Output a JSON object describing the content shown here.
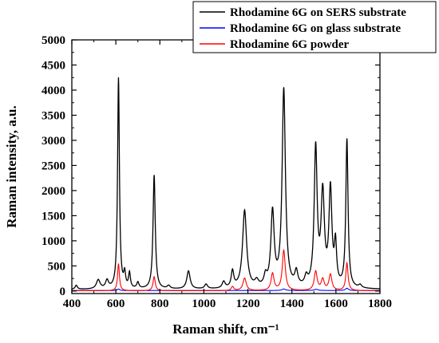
{
  "chart_data": {
    "type": "line",
    "xlabel": "Raman shift, cm⁻¹",
    "ylabel": "Raman intensity, a.u.",
    "xlim": [
      400,
      1800
    ],
    "ylim": [
      -50,
      5000
    ],
    "xticks": [
      400,
      600,
      800,
      1000,
      1200,
      1400,
      1600,
      1800
    ],
    "yticks": [
      0,
      500,
      1000,
      1500,
      2000,
      2500,
      3000,
      3500,
      4000,
      4500,
      5000
    ],
    "legend_position": "top-right",
    "grid": false,
    "series": [
      {
        "name": "Rhodamine 6G on SERS substrate",
        "color": "#000000",
        "baseline": 30,
        "peaks": [
          {
            "x": 420,
            "y": 80,
            "w": 6
          },
          {
            "x": 520,
            "y": 180,
            "w": 10
          },
          {
            "x": 560,
            "y": 160,
            "w": 8
          },
          {
            "x": 612,
            "y": 4200,
            "w": 5
          },
          {
            "x": 640,
            "y": 280,
            "w": 5
          },
          {
            "x": 662,
            "y": 300,
            "w": 5
          },
          {
            "x": 700,
            "y": 120,
            "w": 6
          },
          {
            "x": 774,
            "y": 2270,
            "w": 6
          },
          {
            "x": 840,
            "y": 60,
            "w": 8
          },
          {
            "x": 930,
            "y": 360,
            "w": 9
          },
          {
            "x": 1010,
            "y": 90,
            "w": 8
          },
          {
            "x": 1090,
            "y": 130,
            "w": 8
          },
          {
            "x": 1130,
            "y": 330,
            "w": 7
          },
          {
            "x": 1185,
            "y": 1550,
            "w": 11
          },
          {
            "x": 1240,
            "y": 120,
            "w": 10
          },
          {
            "x": 1280,
            "y": 200,
            "w": 8
          },
          {
            "x": 1312,
            "y": 1490,
            "w": 9
          },
          {
            "x": 1363,
            "y": 3950,
            "w": 9
          },
          {
            "x": 1420,
            "y": 280,
            "w": 8
          },
          {
            "x": 1465,
            "y": 170,
            "w": 8
          },
          {
            "x": 1508,
            "y": 2750,
            "w": 8
          },
          {
            "x": 1540,
            "y": 1830,
            "w": 9
          },
          {
            "x": 1575,
            "y": 1920,
            "w": 8
          },
          {
            "x": 1598,
            "y": 800,
            "w": 6
          },
          {
            "x": 1650,
            "y": 2950,
            "w": 6
          },
          {
            "x": 1710,
            "y": 60,
            "w": 8
          }
        ]
      },
      {
        "name": "Rhodamine 6G on glass substrate",
        "color": "#0000ff",
        "baseline": 10,
        "peaks": [
          {
            "x": 612,
            "y": 30,
            "w": 6
          },
          {
            "x": 1363,
            "y": 30,
            "w": 10
          },
          {
            "x": 1510,
            "y": 25,
            "w": 10
          },
          {
            "x": 1650,
            "y": 45,
            "w": 8
          }
        ]
      },
      {
        "name": "Rhodamine 6G powder",
        "color": "#ff0000",
        "baseline": 5,
        "peaks": [
          {
            "x": 612,
            "y": 540,
            "w": 5
          },
          {
            "x": 774,
            "y": 280,
            "w": 6
          },
          {
            "x": 1130,
            "y": 80,
            "w": 7
          },
          {
            "x": 1185,
            "y": 250,
            "w": 9
          },
          {
            "x": 1312,
            "y": 340,
            "w": 8
          },
          {
            "x": 1363,
            "y": 800,
            "w": 8
          },
          {
            "x": 1508,
            "y": 380,
            "w": 8
          },
          {
            "x": 1540,
            "y": 220,
            "w": 8
          },
          {
            "x": 1575,
            "y": 320,
            "w": 8
          },
          {
            "x": 1650,
            "y": 550,
            "w": 6
          }
        ]
      }
    ]
  }
}
